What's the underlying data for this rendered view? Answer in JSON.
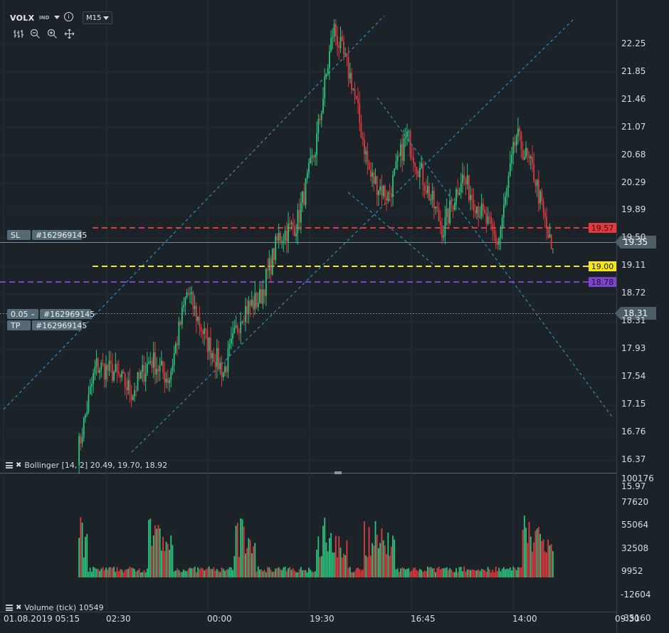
{
  "toolbar": {
    "symbol": "VOLX",
    "type_badge": "IND",
    "info_icon": "info-icon",
    "timeframe": "M15",
    "tools": [
      "bars-icon",
      "zoom-out-icon",
      "zoom-in-icon",
      "crosshair-icon"
    ]
  },
  "price_axis": {
    "labels": [
      "22.25",
      "21.85",
      "21.46",
      "21.07",
      "20.68",
      "20.29",
      "19.89",
      "19.50",
      "19.11",
      "18.72",
      "18.31",
      "17.93",
      "17.54",
      "17.15",
      "16.76",
      "16.37",
      "15.97"
    ],
    "current_price": "19.35",
    "range": [
      15.97,
      22.25
    ]
  },
  "volume_axis": {
    "labels": [
      "100176",
      "77620",
      "55064",
      "32508",
      "9952",
      "-12604",
      "-35160"
    ],
    "range": [
      -35160,
      100176
    ]
  },
  "time_axis": {
    "labels": [
      "01.08.2019 05:15",
      "02:30",
      "00:00",
      "19:30",
      "16:45",
      "14:00",
      "09:30"
    ]
  },
  "order_lines": {
    "sl": {
      "label": "SL",
      "id": "#162969145",
      "price": "19.57",
      "color": "#e0393e"
    },
    "tp": {
      "label": "TP",
      "id": "#162969145",
      "price": "19.00",
      "color": "#f5e51a"
    },
    "order": {
      "volume": "0.05",
      "id": "#162969145",
      "price": "18.31"
    },
    "purple": {
      "price": "18.78",
      "color": "#7c45c9"
    }
  },
  "indicators": {
    "bollinger": "Bollinger [14, 2] 20.49, 19.70, 18.92",
    "volume": "Volume (tick) 10549"
  },
  "colors": {
    "up": "#2bc47d",
    "down": "#e0393e",
    "background": "#1b2228",
    "trendline": "#2aa3e0"
  },
  "chart_data": {
    "type": "candlestick",
    "series": [
      {
        "name": "VOLX",
        "ohlc_anchor_closes": [
          16.2,
          17.5,
          17.4,
          17.1,
          17.6,
          17.3,
          18.6,
          17.9,
          17.4,
          18.3,
          18.5,
          19.4,
          19.6,
          20.7,
          22.5,
          21.7,
          20.3,
          20.0,
          20.9,
          20.2,
          19.5,
          20.3,
          19.8,
          19.3,
          20.9,
          20.3,
          19.1
        ]
      },
      {
        "name": "Volume (tick)",
        "values": [
          10549
        ]
      }
    ]
  }
}
